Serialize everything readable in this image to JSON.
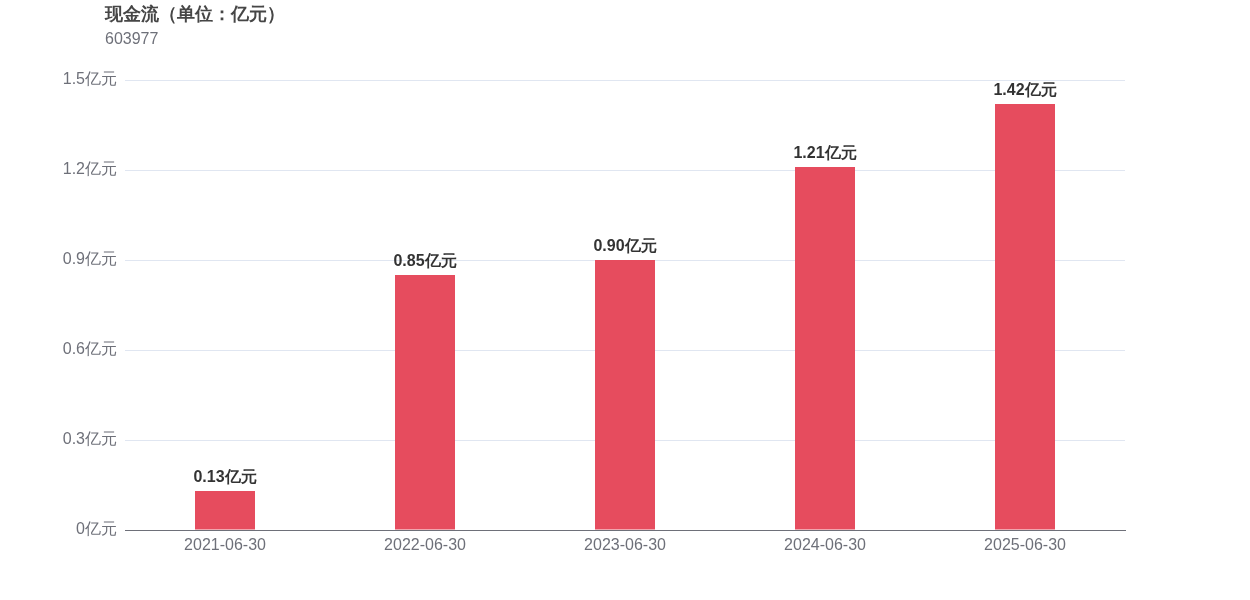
{
  "chart_data": {
    "type": "bar",
    "title": "现金流（单位：亿元）",
    "subtitle": "603977",
    "categories": [
      "2021-06-30",
      "2022-06-30",
      "2023-06-30",
      "2024-06-30",
      "2025-06-30"
    ],
    "values": [
      0.13,
      0.85,
      0.9,
      1.21,
      1.42
    ],
    "value_labels": [
      "0.13亿元",
      "0.85亿元",
      "0.90亿元",
      "1.21亿元",
      "1.42亿元"
    ],
    "color": "#e64c5e",
    "ylim": [
      0,
      1.5
    ],
    "yticks": [
      {
        "value": 0,
        "label": "0亿元"
      },
      {
        "value": 0.3,
        "label": "0.3亿元"
      },
      {
        "value": 0.6,
        "label": "0.6亿元"
      },
      {
        "value": 0.9,
        "label": "0.9亿元"
      },
      {
        "value": 1.2,
        "label": "1.2亿元"
      },
      {
        "value": 1.5,
        "label": "1.5亿元"
      }
    ],
    "grid": "y",
    "legend": false
  }
}
